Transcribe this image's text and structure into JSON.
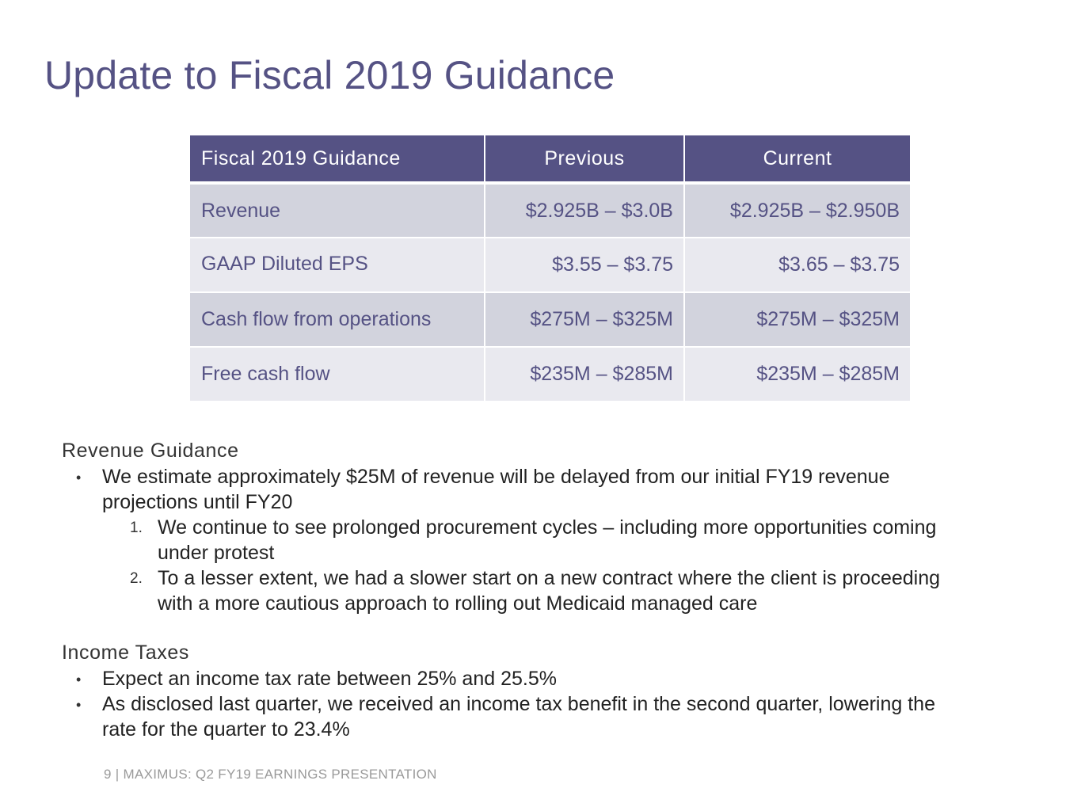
{
  "slide": {
    "title": "Update to Fiscal 2019 Guidance"
  },
  "guidance_table": {
    "headers": [
      "Fiscal 2019 Guidance",
      "Previous",
      "Current"
    ],
    "rows": [
      {
        "label": "Revenue",
        "previous": "$2.925B – $3.0B",
        "current": "$2.925B – $2.950B"
      },
      {
        "label": "GAAP Diluted EPS",
        "previous": "$3.55 – $3.75",
        "current": "$3.65 – $3.75"
      },
      {
        "label": "Cash flow from operations",
        "previous": "$275M – $325M",
        "current": "$275M – $325M"
      },
      {
        "label": "Free cash flow",
        "previous": "$235M – $285M",
        "current": "$235M – $285M"
      }
    ]
  },
  "revenue_guidance": {
    "heading": "Revenue Guidance",
    "bullet_mark": "•",
    "bullet_lines": [
      "We estimate approximately $25M of revenue will be delayed from our initial FY19 revenue",
      "projections until FY20"
    ],
    "numbered": [
      {
        "marker": "1.",
        "lines": [
          "We continue to see prolonged procurement cycles – including more opportunities coming",
          "under protest"
        ]
      },
      {
        "marker": "2.",
        "lines": [
          "To a lesser extent, we had a slower start on a new contract where the client is proceeding",
          "with a more cautious approach to rolling out Medicaid managed care"
        ]
      }
    ]
  },
  "income_taxes": {
    "heading": "Income Taxes",
    "bullet_mark": "•",
    "bullets": [
      {
        "lines": [
          "Expect an income tax rate between 25% and 25.5%"
        ]
      },
      {
        "lines": [
          "As disclosed last quarter, we received an income tax benefit in the second quarter, lowering the",
          "rate for the quarter to 23.4%"
        ]
      }
    ]
  },
  "footer": {
    "text": "9 | MAXIMUS: Q2 FY19 EARNINGS PRESENTATION"
  },
  "colors": {
    "accent": "#555284",
    "row_dark": "#d2d3dd",
    "row_light": "#e9e9ef"
  }
}
